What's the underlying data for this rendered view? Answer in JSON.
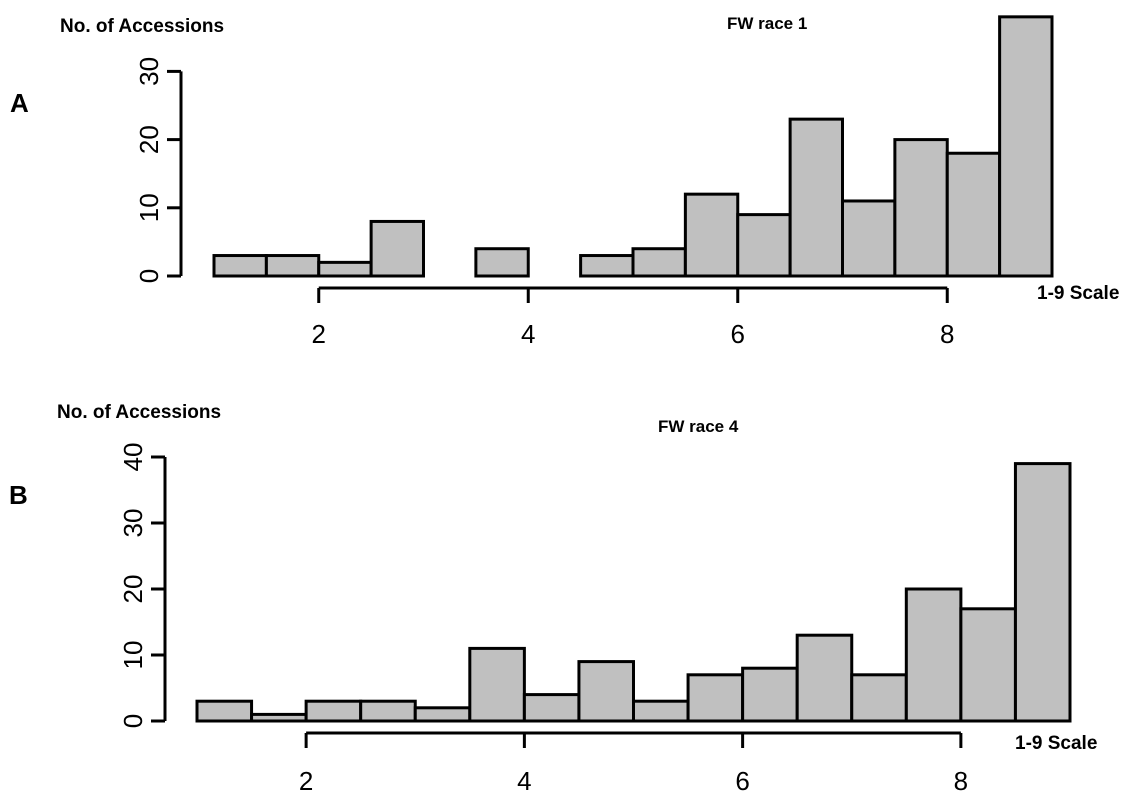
{
  "chart_data": [
    {
      "type": "bar",
      "panel_label": "A",
      "title": "FW race 1",
      "ylabel": "No. of Accessions",
      "xlabel": "1-9 Scale",
      "bin_width": 0.5,
      "bin_starts": [
        1,
        1.5,
        2,
        2.5,
        3,
        3.5,
        4,
        4.5,
        5,
        5.5,
        6,
        6.5,
        7,
        7.5,
        8,
        8.5
      ],
      "values": [
        3,
        3,
        2,
        8,
        0,
        4,
        0,
        3,
        4,
        12,
        9,
        23,
        11,
        20,
        18,
        38
      ],
      "xticks": [
        2,
        4,
        6,
        8
      ],
      "yticks": [
        0,
        10,
        20,
        30
      ],
      "ylim": [
        0,
        30
      ],
      "grid": false
    },
    {
      "type": "bar",
      "panel_label": "B",
      "title": "FW race 4",
      "ylabel": "No. of Accessions",
      "xlabel": "1-9 Scale",
      "bin_width": 0.5,
      "bin_starts": [
        1,
        1.5,
        2,
        2.5,
        3,
        3.5,
        4,
        4.5,
        5,
        5.5,
        6,
        6.5,
        7,
        7.5,
        8,
        8.5
      ],
      "values": [
        3,
        1,
        3,
        3,
        2,
        11,
        4,
        9,
        3,
        7,
        8,
        13,
        7,
        20,
        17,
        39
      ],
      "xticks": [
        2,
        4,
        6,
        8
      ],
      "yticks": [
        0,
        10,
        20,
        30,
        40
      ],
      "ylim": [
        0,
        40
      ],
      "grid": false
    }
  ]
}
